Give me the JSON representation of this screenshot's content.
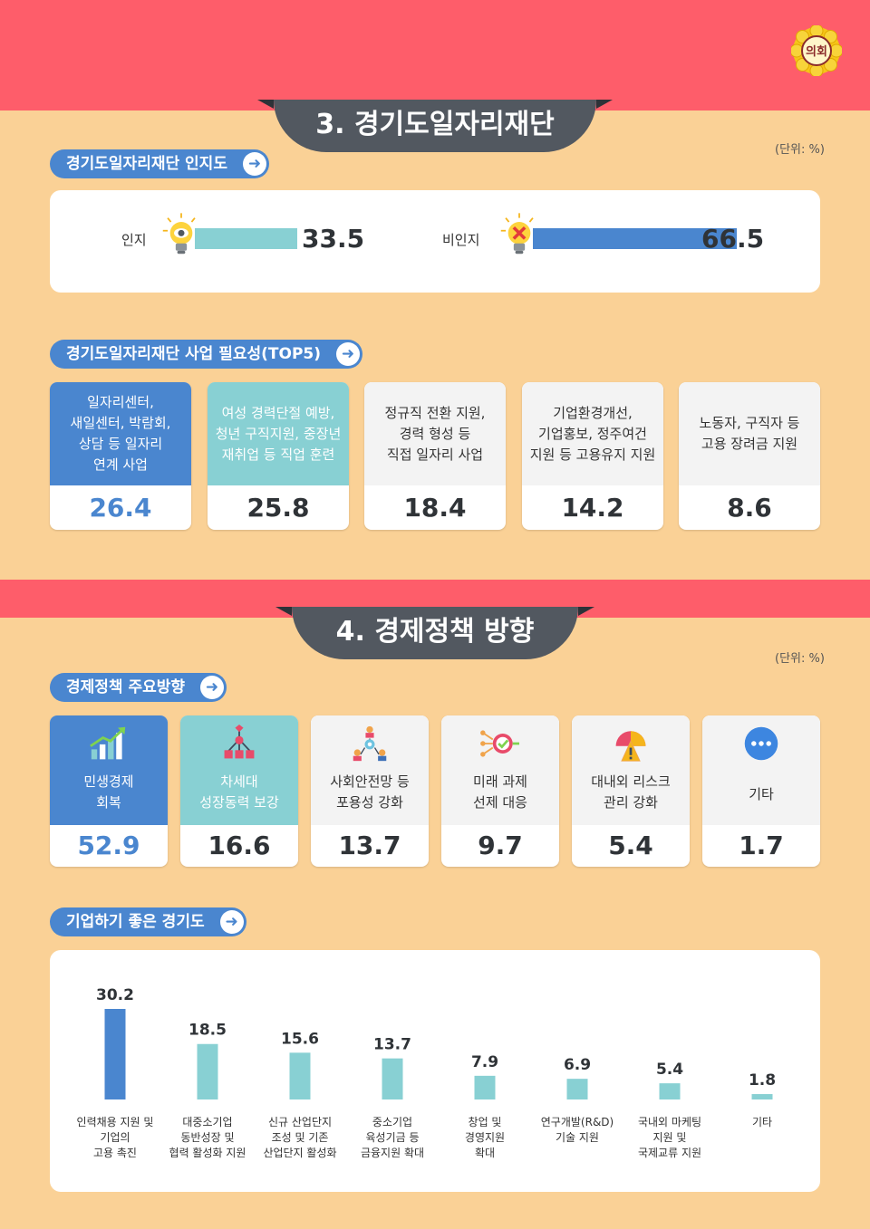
{
  "seal": {
    "label": "의회"
  },
  "section3": {
    "title": "3. 경기도일자리재단",
    "unit": "(단위: %)",
    "awareness": {
      "heading": "경기도일자리재단 인지도",
      "items": [
        {
          "label": "인지",
          "value": 33.5,
          "value_text": "33.5",
          "color": "#88d0d3"
        },
        {
          "label": "비인지",
          "value": 66.5,
          "value_text": "66.5",
          "color": "#4a86cf"
        }
      ]
    },
    "necessity": {
      "heading": "경기도일자리재단 사업 필요성(TOP5)",
      "cards": [
        {
          "lines": [
            "일자리센터,",
            "새일센터, 박람회,",
            "상담 등 일자리",
            "연계 사업"
          ],
          "value": "26.4",
          "style": "blue"
        },
        {
          "lines": [
            "여성 경력단절 예방,",
            "청년 구직지원, 중장년",
            "재취업 등 직업 훈련"
          ],
          "value": "25.8",
          "style": "teal"
        },
        {
          "lines": [
            "정규직 전환 지원,",
            "경력 형성 등",
            "직접 일자리 사업"
          ],
          "value": "18.4",
          "style": "plain"
        },
        {
          "lines": [
            "기업환경개선,",
            "기업홍보, 정주여건",
            "지원 등 고용유지 지원"
          ],
          "value": "14.2",
          "style": "plain"
        },
        {
          "lines": [
            "노동자, 구직자 등",
            "고용 장려금 지원"
          ],
          "value": "8.6",
          "style": "plain"
        }
      ]
    }
  },
  "section4": {
    "title": "4. 경제정책 방향",
    "unit": "(단위: %)",
    "direction": {
      "heading": "경제정책 주요방향",
      "cards": [
        {
          "lines": [
            "민생경제",
            "회복"
          ],
          "value": "52.9",
          "style": "blue",
          "icon": "growth-chart-icon"
        },
        {
          "lines": [
            "차세대",
            "성장동력 보강"
          ],
          "value": "16.6",
          "style": "teal",
          "icon": "network-hierarchy-icon"
        },
        {
          "lines": [
            "사회안전망 등",
            "포용성 강화"
          ],
          "value": "13.7",
          "style": "plain",
          "icon": "people-network-icon"
        },
        {
          "lines": [
            "미래 과제",
            "선제 대응"
          ],
          "value": "9.7",
          "style": "plain",
          "icon": "target-check-icon"
        },
        {
          "lines": [
            "대내외 리스크",
            "관리 강화"
          ],
          "value": "5.4",
          "style": "plain",
          "icon": "risk-gauge-icon"
        },
        {
          "lines": [
            "기타"
          ],
          "value": "1.7",
          "style": "plain",
          "icon": "more-dots-icon"
        }
      ]
    },
    "business": {
      "heading": "기업하기 좋은 경기도"
    }
  },
  "chart_data": {
    "type": "bar",
    "title": "기업하기 좋은 경기도",
    "unit": "(단위: %)",
    "categories": [
      [
        "인력채용 지원 및",
        "기업의",
        "고용 촉진"
      ],
      [
        "대중소기업",
        "동반성장 및",
        "협력 활성화 지원"
      ],
      [
        "신규 산업단지",
        "조성 및 기존",
        "산업단지 활성화"
      ],
      [
        "중소기업",
        "육성기금 등",
        "금융지원 확대"
      ],
      [
        "창업 및",
        "경영지원",
        "확대"
      ],
      [
        "연구개발(R&D)",
        "기술 지원"
      ],
      [
        "국내외 마케팅",
        "지원 및",
        "국제교류 지원"
      ],
      [
        "기타"
      ]
    ],
    "values": [
      30.2,
      18.5,
      15.6,
      13.7,
      7.9,
      6.9,
      5.4,
      1.8
    ],
    "colors": [
      "#4a86cf",
      "#88d0d3",
      "#88d0d3",
      "#88d0d3",
      "#88d0d3",
      "#88d0d3",
      "#88d0d3",
      "#88d0d3"
    ],
    "ylim": [
      0,
      30.2
    ],
    "grid": false,
    "legend": "none"
  }
}
